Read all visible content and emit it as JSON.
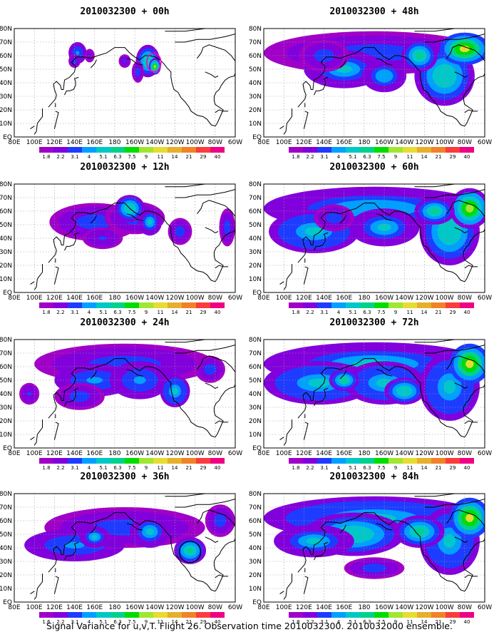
{
  "caption": "Signal Variance for u,v,T. Flight 26. Observation time 2010032300. 2010032000 ensemble.",
  "colors": {
    "scale": [
      "#a000c8",
      "#8200dc",
      "#1e3cff",
      "#00a0ff",
      "#00c8c8",
      "#00d28c",
      "#00dc00",
      "#a0e632",
      "#e6dc32",
      "#e6af2d",
      "#f08228",
      "#fa3c3c",
      "#f00082"
    ],
    "coast": "#000000",
    "grid": "#9a9a9a",
    "contour_00h": "#ff00b4",
    "circle_36h": "#000000"
  },
  "chart_data": {
    "type": "heatmap",
    "colorbar_levels": [
      "1.8",
      "2.2",
      "3.1",
      "4",
      "5.1",
      "6.3",
      "7.5",
      "9",
      "11",
      "14",
      "21",
      "29",
      "40"
    ],
    "colorbar_levels_36h": [
      "1.6",
      "2.2",
      "3.1",
      "4",
      "5.1",
      "6.3",
      "7.5",
      "9",
      "11",
      "14",
      "21",
      "29",
      "40"
    ],
    "x_ticks": [
      "80E",
      "100E",
      "120E",
      "140E",
      "160E",
      "180",
      "160W",
      "140W",
      "120W",
      "100W",
      "80W",
      "60W"
    ],
    "y_ticks": [
      "EQ",
      "10N",
      "20N",
      "30N",
      "40N",
      "50N",
      "60N",
      "70N",
      "80N"
    ],
    "xlim": [
      80,
      300
    ],
    "ylim": [
      0,
      80
    ],
    "grid": true,
    "panels": [
      {
        "id": "p00",
        "title": "2010032300 + 00h",
        "levels": "colorbar_levels",
        "annotation": "contour",
        "blobs": [
          [
            143,
            62,
            9,
            8,
            0.35
          ],
          [
            140,
            56,
            6,
            5,
            0.3
          ],
          [
            155,
            60,
            5,
            5,
            0.15
          ],
          [
            213,
            56,
            12,
            12,
            0.55
          ],
          [
            220,
            52,
            6,
            6,
            0.9
          ],
          [
            203,
            48,
            6,
            8,
            0.25
          ],
          [
            190,
            56,
            6,
            5,
            0.2
          ]
        ]
      },
      {
        "id": "p48",
        "title": "2010032300 + 48h",
        "levels": "colorbar_levels",
        "blobs": [
          [
            190,
            62,
            110,
            16,
            0.3
          ],
          [
            160,
            50,
            40,
            14,
            0.45
          ],
          [
            200,
            45,
            22,
            12,
            0.4
          ],
          [
            260,
            45,
            30,
            22,
            0.55
          ],
          [
            280,
            65,
            25,
            12,
            0.95
          ],
          [
            235,
            60,
            18,
            12,
            0.6
          ],
          [
            140,
            60,
            25,
            12,
            0.25
          ]
        ]
      },
      {
        "id": "p12",
        "title": "2010032300 + 12h",
        "levels": "colorbar_levels",
        "blobs": [
          [
            160,
            52,
            45,
            14,
            0.25
          ],
          [
            200,
            55,
            30,
            12,
            0.3
          ],
          [
            195,
            62,
            15,
            10,
            0.55
          ],
          [
            215,
            52,
            12,
            10,
            0.45
          ],
          [
            245,
            45,
            12,
            10,
            0.25
          ],
          [
            292,
            48,
            8,
            14,
            0.25
          ],
          [
            168,
            40,
            20,
            8,
            0.2
          ]
        ]
      },
      {
        "id": "p60",
        "title": "2010032300 + 60h",
        "levels": "colorbar_levels",
        "blobs": [
          [
            190,
            62,
            110,
            16,
            0.4
          ],
          [
            130,
            45,
            45,
            16,
            0.5
          ],
          [
            200,
            48,
            35,
            14,
            0.45
          ],
          [
            265,
            45,
            30,
            25,
            0.55
          ],
          [
            285,
            62,
            20,
            15,
            0.9
          ],
          [
            250,
            60,
            20,
            10,
            0.6
          ],
          [
            150,
            55,
            20,
            10,
            0.3
          ]
        ]
      },
      {
        "id": "p24",
        "title": "2010032300 + 24h",
        "levels": "colorbar_levels",
        "blobs": [
          [
            190,
            62,
            90,
            15,
            0.25
          ],
          [
            160,
            50,
            40,
            12,
            0.35
          ],
          [
            205,
            50,
            30,
            14,
            0.35
          ],
          [
            240,
            42,
            15,
            12,
            0.5
          ],
          [
            145,
            38,
            25,
            10,
            0.3
          ],
          [
            95,
            40,
            10,
            8,
            0.2
          ],
          [
            275,
            58,
            15,
            10,
            0.3
          ]
        ]
      },
      {
        "id": "p72",
        "title": "2010032300 + 72h",
        "levels": "colorbar_levels",
        "blobs": [
          [
            190,
            62,
            110,
            16,
            0.45
          ],
          [
            135,
            48,
            55,
            16,
            0.5
          ],
          [
            200,
            48,
            40,
            16,
            0.5
          ],
          [
            265,
            45,
            30,
            25,
            0.5
          ],
          [
            285,
            62,
            20,
            15,
            0.95
          ],
          [
            220,
            42,
            20,
            10,
            0.55
          ],
          [
            160,
            50,
            15,
            8,
            0.6
          ]
        ]
      },
      {
        "id": "p36",
        "title": "2010032300 + 36h",
        "levels": "colorbar_levels_36h",
        "annotation": "circle",
        "blobs": [
          [
            190,
            55,
            80,
            15,
            0.25
          ],
          [
            140,
            42,
            50,
            12,
            0.35
          ],
          [
            255,
            38,
            16,
            10,
            0.6
          ],
          [
            215,
            52,
            20,
            12,
            0.45
          ],
          [
            285,
            60,
            15,
            12,
            0.25
          ],
          [
            160,
            48,
            15,
            8,
            0.45
          ]
        ]
      },
      {
        "id": "p84",
        "title": "2010032300 + 84h",
        "levels": "colorbar_levels",
        "blobs": [
          [
            190,
            62,
            110,
            16,
            0.5
          ],
          [
            170,
            50,
            50,
            16,
            0.55
          ],
          [
            130,
            45,
            40,
            12,
            0.45
          ],
          [
            265,
            45,
            30,
            25,
            0.5
          ],
          [
            285,
            62,
            20,
            15,
            0.95
          ],
          [
            235,
            52,
            25,
            12,
            0.6
          ],
          [
            190,
            25,
            30,
            8,
            0.3
          ]
        ]
      }
    ]
  }
}
